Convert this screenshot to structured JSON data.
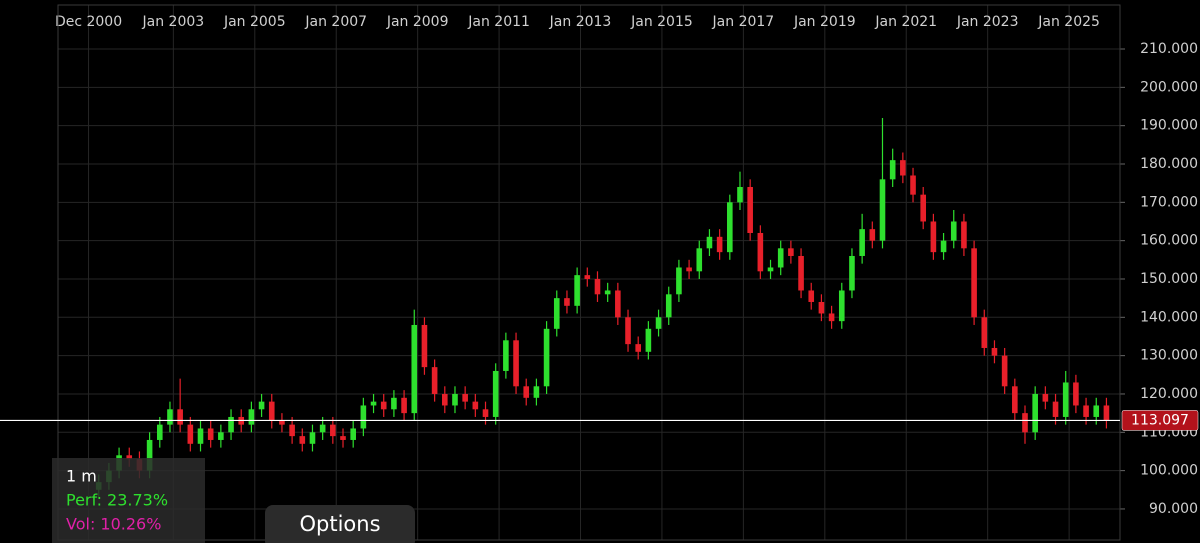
{
  "chart_data": {
    "type": "candlestick",
    "x": [
      "2001-03",
      "2001-06",
      "2001-09",
      "2001-12",
      "2002-03",
      "2002-06",
      "2002-09",
      "2002-12",
      "2003-03",
      "2003-06",
      "2003-09",
      "2003-12",
      "2004-03",
      "2004-06",
      "2004-09",
      "2004-12",
      "2005-03",
      "2005-06",
      "2005-09",
      "2005-12",
      "2006-03",
      "2006-06",
      "2006-09",
      "2006-12",
      "2007-03",
      "2007-06",
      "2007-09",
      "2007-12",
      "2008-03",
      "2008-06",
      "2008-09",
      "2008-12",
      "2009-03",
      "2009-06",
      "2009-09",
      "2009-12",
      "2010-03",
      "2010-06",
      "2010-09",
      "2010-12",
      "2011-03",
      "2011-06",
      "2011-09",
      "2011-12",
      "2012-03",
      "2012-06",
      "2012-09",
      "2012-12",
      "2013-03",
      "2013-06",
      "2013-09",
      "2013-12",
      "2014-03",
      "2014-06",
      "2014-09",
      "2014-12",
      "2015-03",
      "2015-06",
      "2015-09",
      "2015-12",
      "2016-03",
      "2016-06",
      "2016-09",
      "2016-12",
      "2017-03",
      "2017-06",
      "2017-09",
      "2017-12",
      "2018-03",
      "2018-06",
      "2018-09",
      "2018-12",
      "2019-03",
      "2019-06",
      "2019-09",
      "2019-12",
      "2020-03",
      "2020-06",
      "2020-09",
      "2020-12",
      "2021-03",
      "2021-06",
      "2021-09",
      "2021-12",
      "2022-03",
      "2022-06",
      "2022-09",
      "2022-12",
      "2023-03",
      "2023-06",
      "2023-09",
      "2023-12",
      "2024-03",
      "2024-06",
      "2024-09",
      "2024-12",
      "2025-03",
      "2025-06",
      "2025-09",
      "2025-12"
    ],
    "open": [
      95,
      97,
      100,
      104,
      103,
      100,
      108,
      112,
      116,
      112,
      107,
      111,
      108,
      110,
      114,
      112,
      116,
      118,
      113,
      112,
      109,
      107,
      110,
      112,
      109,
      108,
      111,
      117,
      118,
      116,
      119,
      115,
      138,
      127,
      120,
      117,
      120,
      118,
      116,
      114,
      126,
      134,
      122,
      119,
      122,
      137,
      145,
      143,
      151,
      150,
      146,
      147,
      140,
      133,
      131,
      137,
      140,
      146,
      153,
      152,
      158,
      161,
      157,
      170,
      174,
      162,
      152,
      153,
      158,
      156,
      147,
      144,
      141,
      139,
      147,
      156,
      163,
      160,
      176,
      181,
      177,
      172,
      165,
      157,
      160,
      165,
      158,
      140,
      132,
      130,
      122,
      115,
      110,
      120,
      118,
      114,
      123,
      117,
      114,
      117
    ],
    "high": [
      99,
      102,
      106,
      106,
      105,
      110,
      114,
      118,
      124,
      114,
      113,
      113,
      112,
      116,
      116,
      118,
      120,
      120,
      115,
      114,
      111,
      112,
      114,
      114,
      111,
      113,
      119,
      120,
      120,
      121,
      121,
      142,
      140,
      129,
      122,
      122,
      122,
      120,
      118,
      128,
      136,
      136,
      124,
      124,
      139,
      147,
      147,
      153,
      153,
      152,
      149,
      149,
      142,
      135,
      139,
      142,
      148,
      155,
      155,
      160,
      163,
      163,
      172,
      178,
      176,
      164,
      155,
      160,
      160,
      158,
      149,
      146,
      143,
      149,
      158,
      167,
      165,
      192,
      184,
      183,
      179,
      174,
      167,
      162,
      168,
      167,
      160,
      142,
      134,
      132,
      124,
      117,
      122,
      122,
      120,
      126,
      125,
      119,
      119,
      119
    ],
    "low": [
      93,
      95,
      98,
      101,
      98,
      98,
      106,
      110,
      110,
      105,
      105,
      106,
      106,
      108,
      110,
      110,
      114,
      111,
      110,
      107,
      105,
      105,
      108,
      107,
      106,
      106,
      109,
      115,
      114,
      114,
      113,
      113,
      125,
      118,
      115,
      115,
      116,
      114,
      112,
      112,
      124,
      120,
      117,
      117,
      120,
      135,
      141,
      141,
      148,
      144,
      144,
      138,
      131,
      129,
      129,
      135,
      138,
      144,
      150,
      150,
      156,
      155,
      155,
      168,
      160,
      150,
      150,
      151,
      154,
      145,
      142,
      139,
      137,
      137,
      145,
      154,
      158,
      158,
      174,
      175,
      170,
      163,
      155,
      155,
      158,
      156,
      138,
      130,
      128,
      120,
      113,
      107,
      108,
      116,
      112,
      112,
      115,
      112,
      112,
      111
    ],
    "close": [
      97,
      100,
      104,
      103,
      100,
      108,
      112,
      116,
      112,
      107,
      111,
      108,
      110,
      114,
      112,
      116,
      118,
      113,
      112,
      109,
      107,
      110,
      112,
      109,
      108,
      111,
      117,
      118,
      116,
      119,
      115,
      138,
      127,
      120,
      117,
      120,
      118,
      116,
      114,
      126,
      134,
      122,
      119,
      122,
      137,
      145,
      143,
      151,
      150,
      146,
      147,
      140,
      133,
      131,
      137,
      140,
      146,
      153,
      152,
      158,
      161,
      157,
      170,
      174,
      162,
      152,
      153,
      158,
      156,
      147,
      144,
      141,
      139,
      147,
      156,
      163,
      160,
      176,
      181,
      177,
      172,
      165,
      157,
      160,
      165,
      158,
      140,
      132,
      130,
      122,
      115,
      110,
      120,
      118,
      114,
      123,
      117,
      114,
      117,
      113.097
    ],
    "up_color": "#2ee02e",
    "down_color": "#e8202a",
    "xlim": [
      "2000-03",
      "2026-04"
    ],
    "xticks": [
      {
        "value": "2000-12",
        "label": "Dec 2000"
      },
      {
        "value": "2003-01",
        "label": "Jan 2003"
      },
      {
        "value": "2005-01",
        "label": "Jan 2005"
      },
      {
        "value": "2007-01",
        "label": "Jan 2007"
      },
      {
        "value": "2009-01",
        "label": "Jan 2009"
      },
      {
        "value": "2011-01",
        "label": "Jan 2011"
      },
      {
        "value": "2013-01",
        "label": "Jan 2013"
      },
      {
        "value": "2015-01",
        "label": "Jan 2015"
      },
      {
        "value": "2017-01",
        "label": "Jan 2017"
      },
      {
        "value": "2019-01",
        "label": "Jan 2019"
      },
      {
        "value": "2021-01",
        "label": "Jan 2021"
      },
      {
        "value": "2023-01",
        "label": "Jan 2023"
      },
      {
        "value": "2025-01",
        "label": "Jan 2025"
      }
    ],
    "ylim": [
      81.9,
      212.35
    ],
    "yticks": [
      {
        "value": 90,
        "label": "90.000"
      },
      {
        "value": 100,
        "label": "100.000"
      },
      {
        "value": 110,
        "label": "110.000"
      },
      {
        "value": 120,
        "label": "120.000"
      },
      {
        "value": 130,
        "label": "130.000"
      },
      {
        "value": 140,
        "label": "140.000"
      },
      {
        "value": 150,
        "label": "150.000"
      },
      {
        "value": 160,
        "label": "160.000"
      },
      {
        "value": 170,
        "label": "170.000"
      },
      {
        "value": 180,
        "label": "180.000"
      },
      {
        "value": 190,
        "label": "190.000"
      },
      {
        "value": 200,
        "label": "200.000"
      },
      {
        "value": 210,
        "label": "210.000"
      }
    ],
    "grid": true,
    "last_price": {
      "value": 113.097,
      "label": "113.097"
    }
  },
  "ui": {
    "period": "1 m",
    "perf": "Perf: 23.73%",
    "vol": "Vol: 10.26%",
    "options_button": "Options"
  }
}
